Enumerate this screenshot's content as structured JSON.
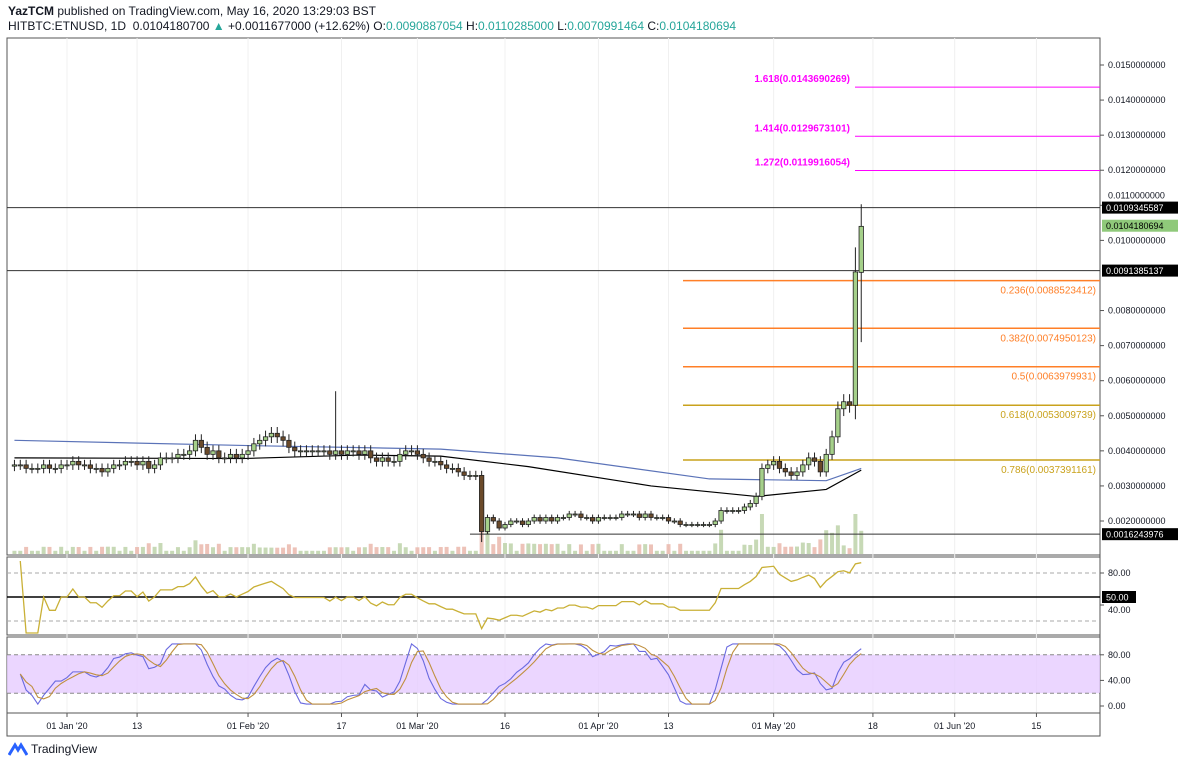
{
  "header": {
    "author": "YazTCM",
    "published": "published on TradingView.com, May 16, 2020 13:29:03 BST",
    "symbol": "HITBTC:ETNUSD, 1D",
    "last": "0.0104180700",
    "arrow": "▲",
    "change": "+0.0011677000 (+12.62%)",
    "o_label": "O:",
    "o": "0.0090887054",
    "h_label": "H:",
    "h": "0.0110285000",
    "l_label": "L:",
    "l": "0.0070991464",
    "c_label": "C:",
    "c": "0.0104180694"
  },
  "footer": {
    "brand": "TradingView"
  },
  "colors": {
    "up": "#a5d08a",
    "down": "#6b4a2a",
    "fib_ext": "#ff00ff",
    "fib_orange": "#ff7f27",
    "fib_gold": "#c9a21c",
    "ma_black": "#000000",
    "ma_blue": "#5b73b8",
    "rsi": "#c9b036",
    "stoch_k": "#6a6ae0",
    "stoch_d": "#c09040",
    "stoch_band": "#e6ccff"
  },
  "chart_data": [
    {
      "type": "candlestick",
      "start_date": "2019-12-23",
      "ylim": [
        0.0012,
        0.0158
      ],
      "closes": [
        0.0036,
        0.0036,
        0.0035,
        0.0035,
        0.0035,
        0.0036,
        0.0035,
        0.0035,
        0.0036,
        0.0036,
        0.0037,
        0.0036,
        0.0036,
        0.0035,
        0.0035,
        0.0034,
        0.0035,
        0.0036,
        0.0036,
        0.0037,
        0.0037,
        0.0036,
        0.0037,
        0.0035,
        0.0036,
        0.0038,
        0.0038,
        0.0038,
        0.0039,
        0.0039,
        0.004,
        0.0043,
        0.0041,
        0.0039,
        0.004,
        0.0038,
        0.0038,
        0.0039,
        0.0038,
        0.0039,
        0.004,
        0.0042,
        0.0043,
        0.0044,
        0.0045,
        0.0044,
        0.0043,
        0.0041,
        0.004,
        0.004,
        0.004,
        0.004,
        0.004,
        0.004,
        0.0039,
        0.004,
        0.0039,
        0.004,
        0.004,
        0.0039,
        0.004,
        0.0038,
        0.0037,
        0.0038,
        0.0037,
        0.0037,
        0.0039,
        0.004,
        0.004,
        0.0039,
        0.0038,
        0.0037,
        0.0037,
        0.0036,
        0.0035,
        0.0035,
        0.0034,
        0.0033,
        0.0033,
        0.0033,
        0.0017,
        0.0021,
        0.002,
        0.0018,
        0.0019,
        0.002,
        0.002,
        0.0019,
        0.002,
        0.0021,
        0.002,
        0.0021,
        0.002,
        0.0021,
        0.0021,
        0.0022,
        0.0022,
        0.0021,
        0.0021,
        0.002,
        0.0021,
        0.0021,
        0.0021,
        0.0021,
        0.0022,
        0.0022,
        0.0022,
        0.0021,
        0.0022,
        0.0021,
        0.0021,
        0.0021,
        0.002,
        0.002,
        0.0019,
        0.0019,
        0.0019,
        0.0019,
        0.0019,
        0.0019,
        0.002,
        0.0023,
        0.0023,
        0.0023,
        0.0023,
        0.0024,
        0.0025,
        0.0027,
        0.0035,
        0.0036,
        0.0037,
        0.0035,
        0.0034,
        0.0033,
        0.0034,
        0.0036,
        0.0038,
        0.0037,
        0.0034,
        0.0039,
        0.0044,
        0.0052,
        0.0054,
        0.0053,
        0.0091,
        0.0104
      ],
      "notable_wicks": [
        {
          "date": "2020-02-16",
          "high": 0.0057
        },
        {
          "date": "2020-03-12",
          "low": 0.0014
        },
        {
          "date": "2020-05-15",
          "high": 0.0098,
          "low": 0.0049
        },
        {
          "date": "2020-05-16",
          "open": 0.0090887054,
          "high": 0.0110285,
          "low": 0.0070991464,
          "close": 0.0104180694
        }
      ],
      "ma_black": [
        [
          "2019-12-23",
          0.0038
        ],
        [
          "2020-01-31",
          0.00378
        ],
        [
          "2020-02-20",
          0.00388
        ],
        [
          "2020-03-05",
          0.00385
        ],
        [
          "2020-03-20",
          0.00355
        ],
        [
          "2020-04-10",
          0.003
        ],
        [
          "2020-04-28",
          0.0027
        ],
        [
          "2020-05-10",
          0.0029
        ],
        [
          "2020-05-16",
          0.00345
        ]
      ],
      "ma_blue": [
        [
          "2019-12-23",
          0.0043
        ],
        [
          "2020-02-01",
          0.00415
        ],
        [
          "2020-03-05",
          0.00405
        ],
        [
          "2020-03-25",
          0.0038
        ],
        [
          "2020-04-20",
          0.0032
        ],
        [
          "2020-05-10",
          0.00315
        ],
        [
          "2020-05-16",
          0.0035
        ]
      ],
      "yticks": [
        "0.0150000000",
        "0.0140000000",
        "0.0130000000",
        "0.0120000000",
        "0.0110000000",
        "0.0100000000",
        "0.0080000000",
        "0.0070000000",
        "0.0060000000",
        "0.0050000000",
        "0.0040000000",
        "0.0030000000",
        "0.0020000000"
      ],
      "ytick_values": [
        0.015,
        0.014,
        0.013,
        0.012,
        0.011,
        0.01,
        0.008,
        0.007,
        0.006,
        0.005,
        0.004,
        0.003,
        0.002
      ],
      "price_labels": [
        {
          "text": "0.0109345587",
          "value": 0.0109345587,
          "style": "black"
        },
        {
          "text": "0.0104180694",
          "value": 0.0104180694,
          "style": "green"
        },
        {
          "text": "0.0091385137",
          "value": 0.0091385137,
          "style": "black"
        },
        {
          "text": "0.0016243976",
          "value": 0.0016243976,
          "style": "black"
        }
      ],
      "horizontal_lines": [
        {
          "value": 0.0109345587,
          "from": "2019-12-23"
        },
        {
          "value": 0.0091385137,
          "from": "2019-12-23"
        },
        {
          "value": 0.0016243976,
          "from": "2020-03-10"
        }
      ],
      "fib_levels": [
        {
          "label": "1.618(0.0143690269)",
          "value": 0.0143690269,
          "kind": "ext"
        },
        {
          "label": "1.414(0.0129673101)",
          "value": 0.0129673101,
          "kind": "ext"
        },
        {
          "label": "1.272(0.0119916054)",
          "value": 0.0119916054,
          "kind": "ext"
        },
        {
          "label": "0.236(0.0088523412)",
          "value": 0.0088523412,
          "kind": "orange"
        },
        {
          "label": "0.382(0.0074950123)",
          "value": 0.0074950123,
          "kind": "orange"
        },
        {
          "label": "0.5(0.0063979931)",
          "value": 0.0063979931,
          "kind": "orange"
        },
        {
          "label": "0.618(0.0053009739)",
          "value": 0.0053009739,
          "kind": "gold"
        },
        {
          "label": "0.786(0.0037391161)",
          "value": 0.0037391161,
          "kind": "gold"
        }
      ]
    },
    {
      "type": "line",
      "name": "RSI",
      "ylim": [
        0,
        100
      ],
      "yticks": [
        "80.00",
        "40.00"
      ],
      "ytick_values": [
        80,
        40
      ],
      "level_label": "50.00",
      "level": 50
    },
    {
      "type": "line",
      "name": "Stoch RSI",
      "ylim": [
        0,
        100
      ],
      "yticks": [
        "80.00",
        "40.00",
        "0.00"
      ],
      "ytick_values": [
        80,
        40,
        0
      ],
      "band": [
        20,
        80
      ]
    }
  ],
  "xaxis": {
    "ticks": [
      {
        "label": "01 Jan '20",
        "date": "2020-01-01"
      },
      {
        "label": "13",
        "date": "2020-01-13"
      },
      {
        "label": "01 Feb '20",
        "date": "2020-02-01"
      },
      {
        "label": "17",
        "date": "2020-02-17"
      },
      {
        "label": "01 Mar '20",
        "date": "2020-03-01"
      },
      {
        "label": "16",
        "date": "2020-03-16"
      },
      {
        "label": "01 Apr '20",
        "date": "2020-04-01"
      },
      {
        "label": "13",
        "date": "2020-04-13"
      },
      {
        "label": "01 May '20",
        "date": "2020-05-01"
      },
      {
        "label": "18",
        "date": "2020-05-18"
      },
      {
        "label": "01 Jun '20",
        "date": "2020-06-01"
      },
      {
        "label": "15",
        "date": "2020-06-15"
      }
    ]
  }
}
